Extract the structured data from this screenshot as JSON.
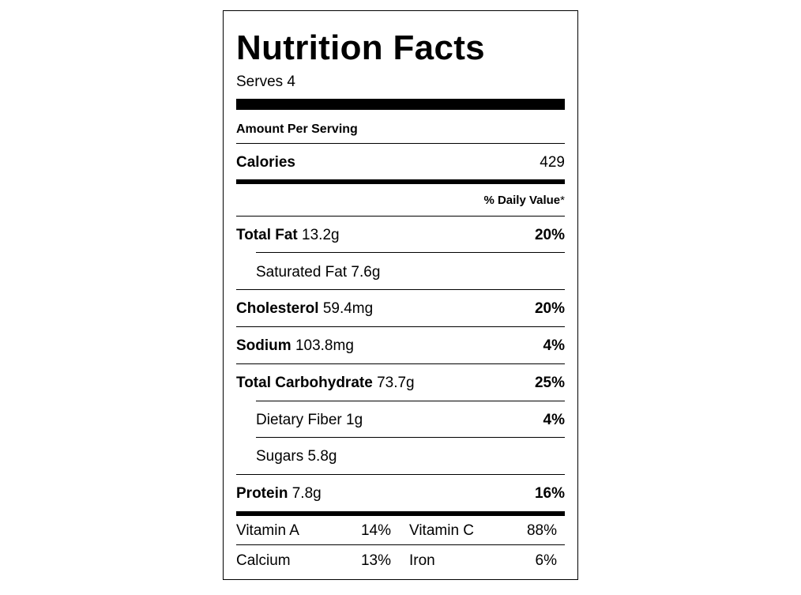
{
  "label": {
    "title": "Nutrition Facts",
    "serves": "Serves 4",
    "amount_per_serving": "Amount Per Serving",
    "calories": {
      "name": "Calories",
      "value": "429"
    },
    "daily_value_header": "% Daily Value",
    "daily_value_star": "*",
    "nutrients": [
      {
        "name": "Total Fat",
        "amount": "13.2g",
        "pct": "20%"
      },
      {
        "name": "Saturated Fat",
        "amount": "7.6g",
        "pct": ""
      },
      {
        "name": "Cholesterol",
        "amount": "59.4mg",
        "pct": "20%"
      },
      {
        "name": "Sodium",
        "amount": "103.8mg",
        "pct": "4%"
      },
      {
        "name": "Total Carbohydrate",
        "amount": "73.7g",
        "pct": "25%"
      },
      {
        "name": "Dietary Fiber",
        "amount": "1g",
        "pct": "4%"
      },
      {
        "name": "Sugars",
        "amount": "5.8g",
        "pct": ""
      },
      {
        "name": "Protein",
        "amount": "7.8g",
        "pct": "16%"
      }
    ],
    "vitamins": [
      {
        "name": "Vitamin A",
        "pct": "14%"
      },
      {
        "name": "Vitamin C",
        "pct": "88%"
      },
      {
        "name": "Calcium",
        "pct": "13%"
      },
      {
        "name": "Iron",
        "pct": "6%"
      }
    ]
  }
}
